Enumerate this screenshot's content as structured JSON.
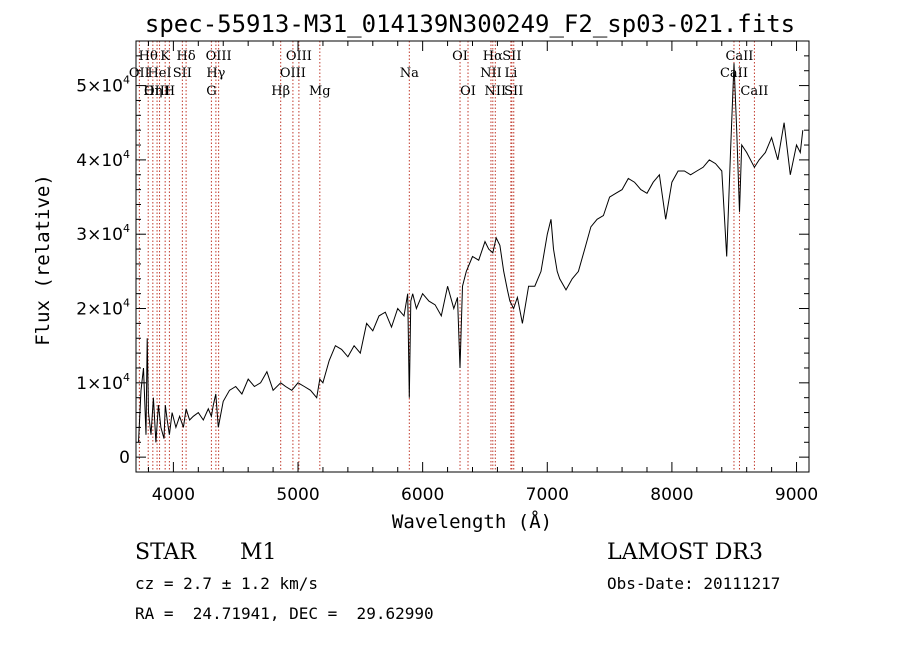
{
  "chart_data": {
    "type": "line",
    "title": "spec-55913-M31_014139N300249_F2_sp03-021.fits",
    "xlabel": "Wavelength (Å)",
    "ylabel": "Flux (relative)",
    "xlim": [
      3700,
      9100
    ],
    "ylim": [
      -2000,
      56000
    ],
    "xticks": [
      4000,
      5000,
      6000,
      7000,
      8000,
      9000
    ],
    "xtick_labels": [
      "4000",
      "5000",
      "6000",
      "7000",
      "8000",
      "9000"
    ],
    "yticks": [
      0,
      10000,
      20000,
      30000,
      40000,
      50000
    ],
    "ytick_labels": [
      {
        "mant": "0",
        "exp": ""
      },
      {
        "mant": "1×10",
        "exp": "4"
      },
      {
        "mant": "2×10",
        "exp": "4"
      },
      {
        "mant": "3×10",
        "exp": "4"
      },
      {
        "mant": "4×10",
        "exp": "4"
      },
      {
        "mant": "5×10",
        "exp": "4"
      }
    ],
    "series": [
      {
        "name": "flux",
        "x": [
          3720,
          3740,
          3760,
          3780,
          3790,
          3800,
          3820,
          3840,
          3860,
          3880,
          3900,
          3925,
          3935,
          3950,
          3968,
          3990,
          4020,
          4050,
          4080,
          4102,
          4130,
          4160,
          4200,
          4240,
          4280,
          4305,
          4320,
          4340,
          4360,
          4400,
          4450,
          4500,
          4550,
          4600,
          4650,
          4700,
          4750,
          4800,
          4861,
          4900,
          4950,
          5000,
          5050,
          5100,
          5150,
          5175,
          5200,
          5250,
          5300,
          5350,
          5400,
          5450,
          5500,
          5550,
          5600,
          5650,
          5700,
          5750,
          5800,
          5850,
          5880,
          5893,
          5905,
          5920,
          5950,
          6000,
          6050,
          6100,
          6150,
          6200,
          6250,
          6280,
          6300,
          6320,
          6350,
          6400,
          6450,
          6500,
          6530,
          6563,
          6590,
          6620,
          6650,
          6680,
          6700,
          6730,
          6760,
          6800,
          6850,
          6900,
          6950,
          7000,
          7030,
          7050,
          7080,
          7100,
          7150,
          7200,
          7250,
          7300,
          7350,
          7400,
          7450,
          7500,
          7550,
          7600,
          7650,
          7700,
          7750,
          7800,
          7850,
          7900,
          7950,
          8000,
          8050,
          8100,
          8150,
          8200,
          8250,
          8300,
          8350,
          8400,
          8440,
          8470,
          8498,
          8520,
          8542,
          8560,
          8600,
          8662,
          8700,
          8750,
          8800,
          8850,
          8900,
          8950,
          9000,
          9030,
          9050
        ],
        "values": [
          2000,
          9000,
          12000,
          3000,
          16000,
          6000,
          3000,
          8000,
          2000,
          7000,
          4000,
          2500,
          7000,
          5000,
          3000,
          6000,
          4000,
          5500,
          4000,
          6500,
          5000,
          5500,
          6000,
          5000,
          6500,
          5500,
          7000,
          8500,
          4000,
          7500,
          9000,
          9500,
          8500,
          10500,
          9500,
          10000,
          11500,
          9000,
          10000,
          9500,
          9000,
          10000,
          9500,
          9000,
          8000,
          10500,
          10000,
          13000,
          15000,
          14500,
          13500,
          15000,
          14000,
          18000,
          17000,
          19000,
          19500,
          17500,
          20000,
          19000,
          22000,
          8000,
          21000,
          22000,
          20000,
          22000,
          21000,
          20500,
          19000,
          23000,
          20000,
          21500,
          12000,
          23000,
          25000,
          27000,
          26500,
          29000,
          28000,
          27500,
          29500,
          28500,
          25000,
          22500,
          21000,
          20000,
          21500,
          18000,
          23000,
          23000,
          25000,
          30000,
          32000,
          28000,
          25000,
          24000,
          22500,
          24000,
          25000,
          28000,
          31000,
          32000,
          32500,
          35000,
          35500,
          36000,
          37500,
          37000,
          36000,
          35500,
          37000,
          38000,
          32000,
          37000,
          38500,
          38500,
          38000,
          38500,
          39000,
          40000,
          39500,
          38500,
          27000,
          41000,
          53000,
          44000,
          33000,
          42000,
          41000,
          39000,
          40000,
          41000,
          43000,
          40000,
          45000,
          38000,
          42000,
          41000,
          44000
        ]
      }
    ],
    "spectral_lines": [
      {
        "name": "Hθ",
        "wl": 3798,
        "row": 0
      },
      {
        "name": "OII",
        "wl": 3727,
        "row": 1
      },
      {
        "name": "OIII",
        "wl": 3869,
        "row": 2
      },
      {
        "name": "Hη",
        "wl": 3835,
        "row": 2
      },
      {
        "name": "K",
        "wl": 3934,
        "row": 0
      },
      {
        "name": "HeI",
        "wl": 3889,
        "row": 1
      },
      {
        "name": "SII",
        "wl": 4072,
        "row": 1
      },
      {
        "name": "H",
        "wl": 3968,
        "row": 2
      },
      {
        "name": "Hδ",
        "wl": 4102,
        "row": 0
      },
      {
        "name": "OIII",
        "wl": 4363,
        "row": 0
      },
      {
        "name": "Hγ",
        "wl": 4341,
        "row": 1
      },
      {
        "name": "G",
        "wl": 4305,
        "row": 2
      },
      {
        "name": "Hβ",
        "wl": 4861,
        "row": 2
      },
      {
        "name": "OIII",
        "wl": 5007,
        "row": 0
      },
      {
        "name": "OIII",
        "wl": 4959,
        "row": 1
      },
      {
        "name": "Mg",
        "wl": 5175,
        "row": 2
      },
      {
        "name": "Na",
        "wl": 5893,
        "row": 1
      },
      {
        "name": "OI",
        "wl": 6300,
        "row": 0
      },
      {
        "name": "OI",
        "wl": 6364,
        "row": 2
      },
      {
        "name": "Hα",
        "wl": 6563,
        "row": 0
      },
      {
        "name": "NII",
        "wl": 6548,
        "row": 1
      },
      {
        "name": "NII",
        "wl": 6583,
        "row": 2
      },
      {
        "name": "SII",
        "wl": 6716,
        "row": 0
      },
      {
        "name": "Li",
        "wl": 6708,
        "row": 1
      },
      {
        "name": "SII",
        "wl": 6731,
        "row": 2
      },
      {
        "name": "CaII",
        "wl": 8542,
        "row": 0
      },
      {
        "name": "CaII",
        "wl": 8498,
        "row": 1
      },
      {
        "name": "CaII",
        "wl": 8662,
        "row": 2
      }
    ],
    "line_color": "#000000",
    "marker_color": "#c0392b"
  },
  "info": {
    "class": "STAR",
    "subclass": "M1",
    "survey": "LAMOST DR3",
    "cz": "cz = 2.7 ± 1.2 km/s",
    "obs_date": "Obs-Date: 20111217",
    "radec": "RA =  24.71941, DEC =  29.62990"
  }
}
